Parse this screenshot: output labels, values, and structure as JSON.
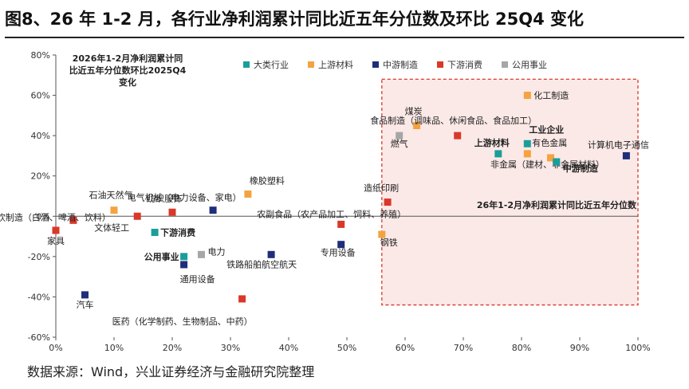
{
  "title": "图8、26 年 1-2 月，各行业净利润累计同比近五年分位数及环比 25Q4 变化",
  "source": "数据来源：Wind，兴业证券经济与金融研究院整理",
  "colors": {
    "大类行业": "#1a9e9a",
    "上游材料": "#f4a340",
    "中游制造": "#1f2e7a",
    "下游消费": "#d9382b",
    "公用事业": "#a6a6a6",
    "highlight_border": "#d9382b",
    "highlight_fill": "#fbe9e7"
  },
  "chart_data": {
    "type": "scatter",
    "y_axis_title": "2026年1-2月净利润累计同比近五年分位数环比2025Q4变化",
    "x_axis_title": "26年1-2月净利润累计同比近五年分位数",
    "xlim": [
      0,
      100
    ],
    "ylim": [
      -60,
      80
    ],
    "x_ticks": [
      "0%",
      "10%",
      "20%",
      "30%",
      "40%",
      "50%",
      "60%",
      "70%",
      "80%",
      "90%",
      "100%"
    ],
    "y_ticks": [
      "80%",
      "60%",
      "40%",
      "20%",
      "0%",
      "-20%",
      "-40%",
      "-60%"
    ],
    "x_tick_values": [
      0,
      10,
      20,
      30,
      40,
      50,
      60,
      70,
      80,
      90,
      100
    ],
    "y_tick_values": [
      80,
      60,
      40,
      20,
      0,
      -20,
      -40,
      -60
    ],
    "highlight_region": {
      "x": [
        56,
        100
      ],
      "y": [
        -44,
        68
      ]
    },
    "legend": [
      "大类行业",
      "上游材料",
      "中游制造",
      "下游消费",
      "公用事业"
    ],
    "points": [
      {
        "label": "化工制造",
        "group": "上游材料",
        "x": 81,
        "y": 60,
        "bold": false
      },
      {
        "label": "煤炭",
        "group": "上游材料",
        "x": 62,
        "y": 45,
        "bold": false
      },
      {
        "label": "食品制造（调味品、休闲食品、食品加工）",
        "group": "下游消费",
        "x": 69,
        "y": 40,
        "bold": false
      },
      {
        "label": "燃气",
        "group": "公用事业",
        "x": 59,
        "y": 40,
        "bold": false
      },
      {
        "label": "上游材料",
        "group": "大类行业",
        "x": 76,
        "y": 31,
        "bold": true
      },
      {
        "label": "工业企业",
        "group": "大类行业",
        "x": 81,
        "y": 36,
        "bold": true
      },
      {
        "label": "有色金属",
        "group": "上游材料",
        "x": 81,
        "y": 31,
        "bold": false
      },
      {
        "label": "非金属（建材、非金属材料）",
        "group": "上游材料",
        "x": 85,
        "y": 29,
        "bold": false
      },
      {
        "label": "中游制造",
        "group": "大类行业",
        "x": 86,
        "y": 27,
        "bold": true
      },
      {
        "label": "计算机电子通信",
        "group": "中游制造",
        "x": 98,
        "y": 30,
        "bold": false
      },
      {
        "label": "造纸印刷",
        "group": "下游消费",
        "x": 57,
        "y": 7,
        "bold": false
      },
      {
        "label": "钢铁",
        "group": "上游材料",
        "x": 56,
        "y": -9,
        "bold": false
      },
      {
        "label": "专用设备",
        "group": "中游制造",
        "x": 49,
        "y": -14,
        "bold": false
      },
      {
        "label": "农副食品（农产品加工、饲料、养殖）",
        "group": "下游消费",
        "x": 49,
        "y": -4,
        "bold": false
      },
      {
        "label": "橡胶塑料",
        "group": "上游材料",
        "x": 33,
        "y": 11,
        "bold": false
      },
      {
        "label": "铁路船舶航空航天",
        "group": "中游制造",
        "x": 37,
        "y": -19,
        "bold": false
      },
      {
        "label": "医药（化学制药、生物制品、中药）",
        "group": "下游消费",
        "x": 32,
        "y": -41,
        "bold": false
      },
      {
        "label": "电气机械（电力设备、家电）",
        "group": "中游制造",
        "x": 27,
        "y": 3,
        "bold": false
      },
      {
        "label": "电力",
        "group": "公用事业",
        "x": 25,
        "y": -19,
        "bold": false
      },
      {
        "label": "通用设备",
        "group": "中游制造",
        "x": 22,
        "y": -24,
        "bold": false
      },
      {
        "label": "公用事业",
        "group": "大类行业",
        "x": 22,
        "y": -20,
        "bold": true
      },
      {
        "label": "纺织服饰",
        "group": "下游消费",
        "x": 20,
        "y": 2,
        "bold": false
      },
      {
        "label": "下游消费",
        "group": "大类行业",
        "x": 17,
        "y": -8,
        "bold": true
      },
      {
        "label": "文体轻工",
        "group": "下游消费",
        "x": 14,
        "y": 0,
        "bold": false
      },
      {
        "label": "石油天然气",
        "group": "上游材料",
        "x": 10,
        "y": 3,
        "bold": false
      },
      {
        "label": "酒饮制造（白酒、啤酒、饮料）",
        "group": "下游消费",
        "x": 3,
        "y": -2,
        "bold": false
      },
      {
        "label": "家具",
        "group": "下游消费",
        "x": 0,
        "y": -7,
        "bold": false
      },
      {
        "label": "汽车",
        "group": "中游制造",
        "x": 5,
        "y": -39,
        "bold": false
      }
    ]
  }
}
